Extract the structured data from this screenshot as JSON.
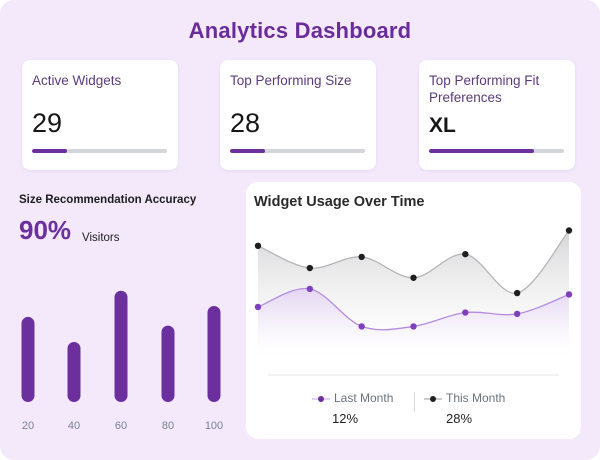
{
  "page": {
    "title": "Analytics Dashboard"
  },
  "colors": {
    "accent": "#6b2f9e",
    "background": "#f3e9fb",
    "track": "#d4d6db"
  },
  "cards": [
    {
      "label": "Active Widgets",
      "value": "29",
      "progress": 0.26
    },
    {
      "label": "Top Performing Size",
      "value": "28",
      "progress": 0.26
    },
    {
      "label": "Top Performing Fit Preferences",
      "value": "XL",
      "progress": 0.78
    }
  ],
  "accuracy": {
    "title": "Size Recommendation Accuracy",
    "value": "90%",
    "unit": "Visitors"
  },
  "chart_data": [
    {
      "type": "bar",
      "title": "",
      "categories": [
        "20",
        "40",
        "60",
        "80",
        "100"
      ],
      "values": [
        78,
        55,
        102,
        70,
        88
      ],
      "ylim": [
        0,
        110
      ],
      "xlabel": "",
      "ylabel": "",
      "grid": false
    },
    {
      "type": "line",
      "title": "Widget Usage Over Time",
      "x": [
        0,
        1,
        2,
        3,
        4,
        5,
        6
      ],
      "ylim": [
        0,
        100
      ],
      "grid": false,
      "series": [
        {
          "name": "This Month",
          "values": [
            80,
            64,
            72,
            57,
            74,
            46,
            91
          ],
          "summary": "28%",
          "color": "#1f1f1f"
        },
        {
          "name": "Last Month",
          "values": [
            36,
            49,
            22,
            22,
            32,
            31,
            45
          ],
          "summary": "12%",
          "color": "#7e3fbf"
        }
      ]
    }
  ]
}
